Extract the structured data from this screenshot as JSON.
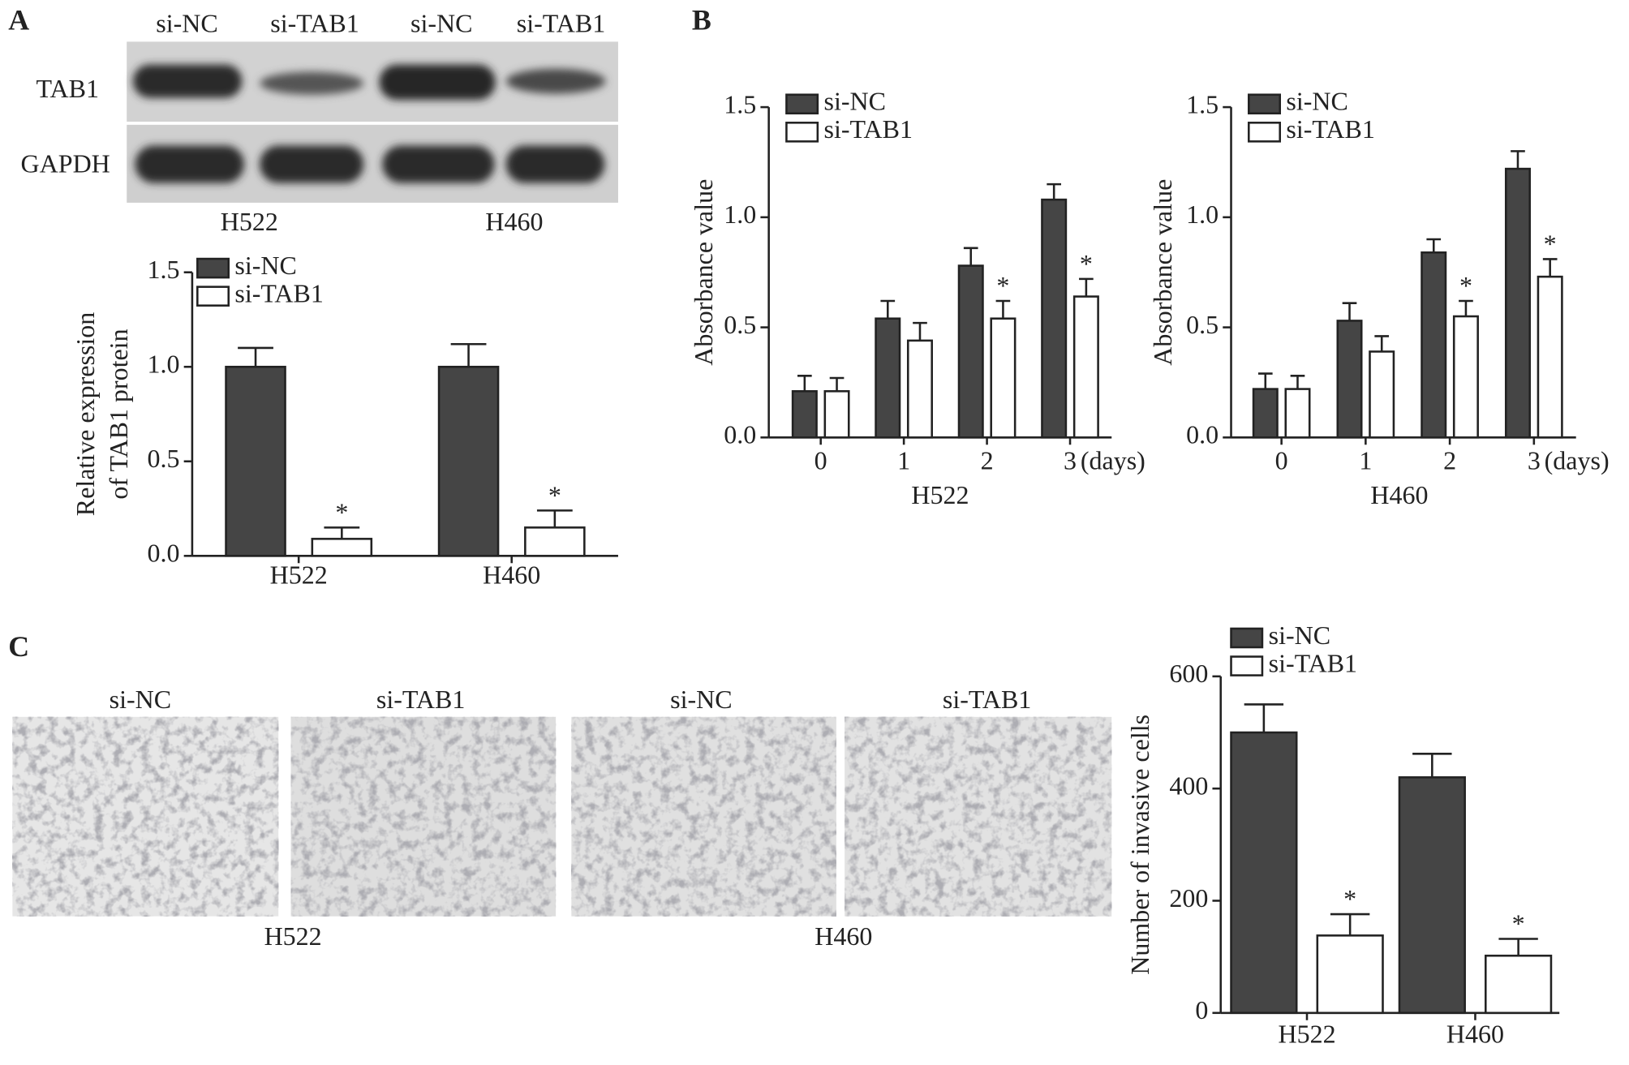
{
  "panels": [
    "A",
    "B",
    "C"
  ],
  "blot": {
    "lanes": [
      "si-NC",
      "si-TAB1",
      "si-NC",
      "si-TAB1"
    ],
    "rows": [
      "TAB1",
      "GAPDH"
    ],
    "cell_lines": [
      "H522",
      "H460"
    ]
  },
  "micrographs": {
    "labels": [
      "si-NC",
      "si-TAB1",
      "si-NC",
      "si-TAB1"
    ],
    "cell_lines": [
      "H522",
      "H460"
    ]
  },
  "chart_data": [
    {
      "type": "bar",
      "ylabel": [
        "Relative expression",
        "of TAB1 protein"
      ],
      "categories": [
        "H522",
        "H460"
      ],
      "ylim": [
        0,
        1.5
      ],
      "yticks": [
        {
          "value": 0,
          "label": "0.0"
        },
        0.5,
        {
          "value": 1,
          "label": "1.0"
        },
        1.5
      ],
      "series": [
        {
          "name": "si-NC",
          "color": "#454545",
          "values": [
            1.0,
            1.0
          ],
          "errors": [
            0.1,
            0.12
          ]
        },
        {
          "name": "si-TAB1",
          "color": "#ffffff",
          "values": [
            0.09,
            0.15
          ],
          "errors": [
            0.06,
            0.09
          ],
          "markers": [
            "*",
            "*"
          ]
        }
      ]
    },
    {
      "type": "bar",
      "ylabel": "Absorbance value",
      "xlabel": "H522",
      "x_unit": "(days)",
      "categories": [
        "0",
        "1",
        "2",
        "3"
      ],
      "ylim": [
        0,
        1.5
      ],
      "yticks": [
        {
          "value": 0,
          "label": "0.0"
        },
        0.5,
        {
          "value": 1,
          "label": "1.0"
        },
        1.5
      ],
      "series": [
        {
          "name": "si-NC",
          "color": "#454545",
          "values": [
            0.21,
            0.54,
            0.78,
            1.08
          ],
          "errors": [
            0.07,
            0.08,
            0.08,
            0.07
          ]
        },
        {
          "name": "si-TAB1",
          "color": "#ffffff",
          "values": [
            0.21,
            0.44,
            0.54,
            0.64
          ],
          "errors": [
            0.06,
            0.08,
            0.08,
            0.08
          ],
          "markers": [
            null,
            null,
            "*",
            "*"
          ]
        }
      ]
    },
    {
      "type": "bar",
      "ylabel": "Absorbance value",
      "xlabel": "H460",
      "x_unit": "(days)",
      "categories": [
        "0",
        "1",
        "2",
        "3"
      ],
      "ylim": [
        0,
        1.5
      ],
      "yticks": [
        {
          "value": 0,
          "label": "0.0"
        },
        0.5,
        {
          "value": 1,
          "label": "1.0"
        },
        1.5
      ],
      "series": [
        {
          "name": "si-NC",
          "color": "#454545",
          "values": [
            0.22,
            0.53,
            0.84,
            1.22
          ],
          "errors": [
            0.07,
            0.08,
            0.06,
            0.08
          ]
        },
        {
          "name": "si-TAB1",
          "color": "#ffffff",
          "values": [
            0.22,
            0.39,
            0.55,
            0.73
          ],
          "errors": [
            0.06,
            0.07,
            0.07,
            0.08
          ],
          "markers": [
            null,
            null,
            "*",
            "*"
          ]
        }
      ]
    },
    {
      "type": "bar",
      "ylabel": "Number of invasive cells",
      "categories": [
        "H522",
        "H460"
      ],
      "ylim": [
        0,
        600
      ],
      "yticks": [
        0,
        200,
        400,
        600
      ],
      "series": [
        {
          "name": "si-NC",
          "color": "#454545",
          "values": [
            500,
            420
          ],
          "errors": [
            50,
            42
          ]
        },
        {
          "name": "si-TAB1",
          "color": "#ffffff",
          "values": [
            138,
            102
          ],
          "errors": [
            38,
            30
          ],
          "markers": [
            "*",
            "*"
          ]
        }
      ]
    }
  ]
}
